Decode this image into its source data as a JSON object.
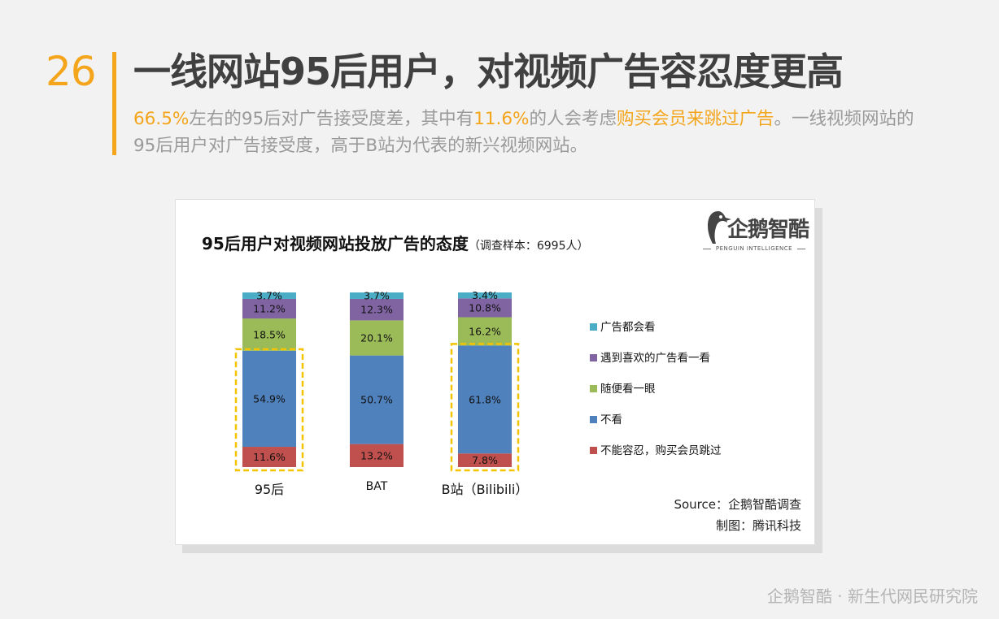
{
  "header": {
    "page_number": "26",
    "title": "一线网站95后用户，对视频广告容忍度更高",
    "sub_1": "66.5%",
    "sub_2": "左右的95后对广告接受度差，其中有",
    "sub_3": "11.6%",
    "sub_4": "的人会考虑",
    "sub_5": "购买会员来跳过广告",
    "sub_6": "。一线视频网站的95后用户对广告接受度，高于B站为代表的新兴视频网站。"
  },
  "card": {
    "logo_text": "企鹅智酷",
    "logo_sub": "PENGUIN INTELLIGENCE",
    "source": "Source：企鹅智酷调查",
    "credit": "制图：腾讯科技"
  },
  "footer": {
    "text": "企鹅智酷 · 新生代网民研究院"
  },
  "chart_data": {
    "type": "bar",
    "stacked": true,
    "title": "95后用户对视频网站投放广告的态度",
    "title_note": "（调查样本：6995人）",
    "categories": [
      "95后",
      "BAT",
      "B站（Bilibili）"
    ],
    "series": [
      {
        "name": "不能容忍，购买会员跳过",
        "color": "#c0504d",
        "values": [
          11.6,
          13.2,
          7.8
        ]
      },
      {
        "name": "不看",
        "color": "#4f81bd",
        "values": [
          54.9,
          50.7,
          61.8
        ]
      },
      {
        "name": "随便看一眼",
        "color": "#9bbb59",
        "values": [
          18.5,
          20.1,
          16.2
        ]
      },
      {
        "name": "遇到喜欢的广告看一看",
        "color": "#8064a2",
        "values": [
          11.2,
          12.3,
          10.8
        ]
      },
      {
        "name": "广告都会看",
        "color": "#4bacc6",
        "values": [
          3.7,
          3.7,
          3.4
        ]
      }
    ],
    "value_suffix": "%",
    "legend_position": "right",
    "legend_order": [
      "广告都会看",
      "遇到喜欢的广告看一看",
      "随便看一眼",
      "不看",
      "不能容忍，购买会员跳过"
    ],
    "highlight_categories": [
      "95后",
      "B站（Bilibili）"
    ],
    "highlight_color": "#f5c400",
    "ylim": [
      0,
      100
    ],
    "grid": false
  }
}
